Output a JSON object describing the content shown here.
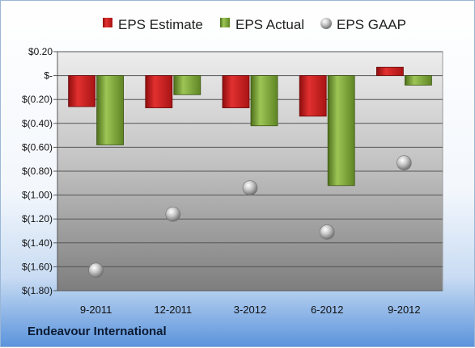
{
  "company": "Endeavour International",
  "chart_data": {
    "type": "bar",
    "categories": [
      "9-2011",
      "12-2011",
      "3-2012",
      "6-2012",
      "9-2012"
    ],
    "series": [
      {
        "name": "EPS Estimate",
        "kind": "bar",
        "color": "#cc1f1f",
        "values": [
          -0.26,
          -0.27,
          -0.27,
          -0.34,
          0.07
        ]
      },
      {
        "name": "EPS Actual",
        "kind": "bar",
        "color": "#7fa636",
        "values": [
          -0.58,
          -0.16,
          -0.42,
          -0.92,
          -0.08
        ]
      },
      {
        "name": "EPS GAAP",
        "kind": "marker",
        "color": "#a9a9a9",
        "values": [
          -1.63,
          -1.16,
          -0.94,
          -1.31,
          -0.73
        ]
      }
    ],
    "yticks": [
      "$0.20",
      "$-",
      "$(0.20)",
      "$(0.40)",
      "$(0.60)",
      "$(0.80)",
      "$(1.00)",
      "$(1.20)",
      "$(1.40)",
      "$(1.60)",
      "$(1.80)"
    ],
    "ylim": [
      -1.8,
      0.2
    ],
    "grid": true,
    "legend": "top"
  }
}
